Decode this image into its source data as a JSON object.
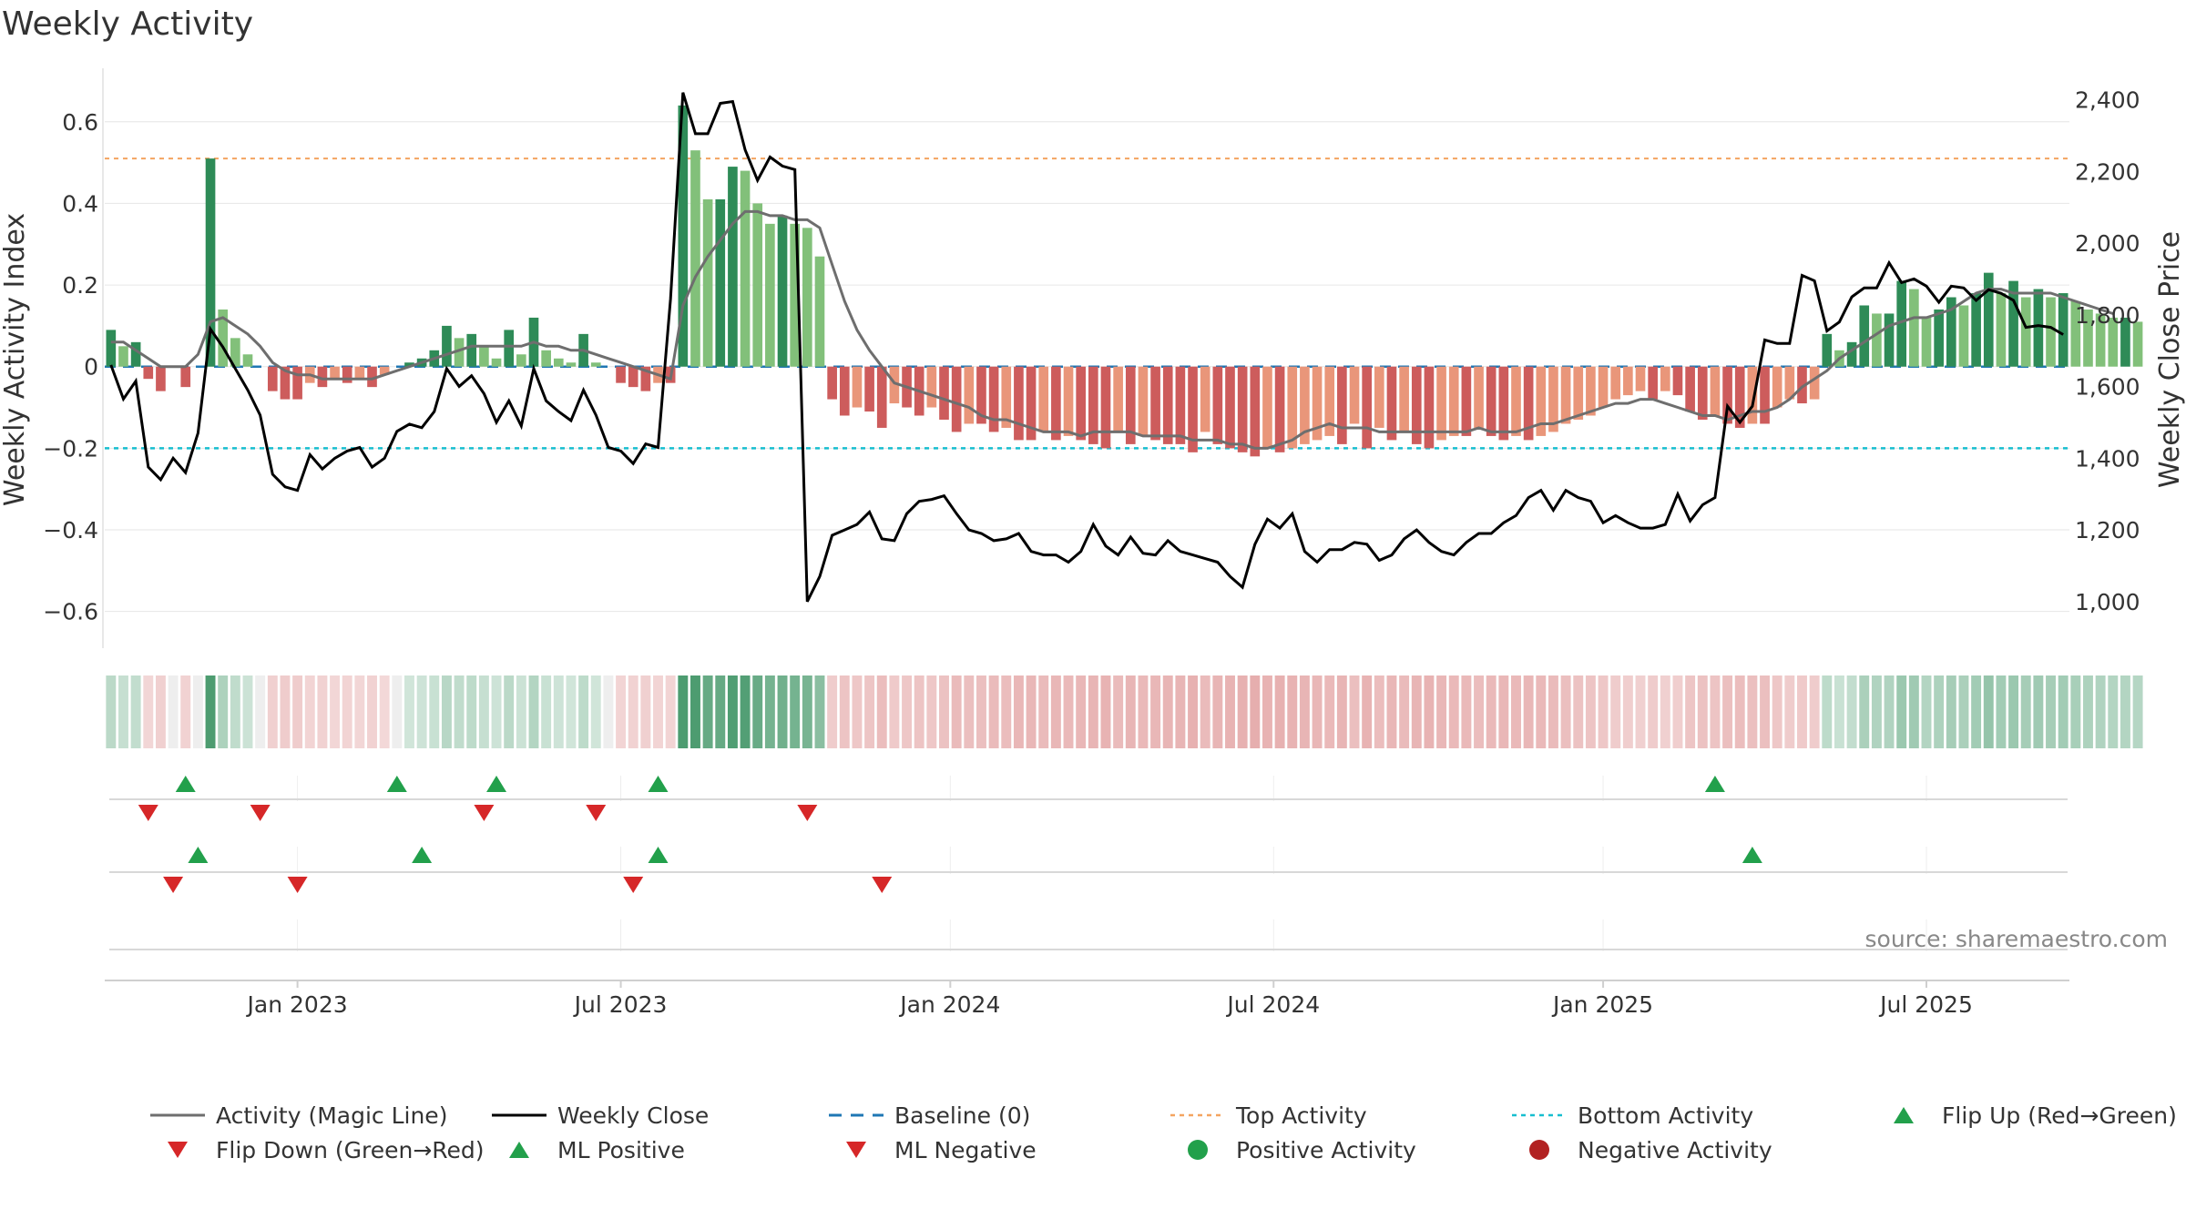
{
  "chart_data": {
    "type": "bar",
    "title": "Weekly Activity",
    "ylabel_left": "Weekly Activity Index",
    "ylabel_right": "Weekly Close Price",
    "ylim_left": [
      -0.69,
      0.72
    ],
    "ylim_right": [
      870,
      2475
    ],
    "yticks_left": [
      {
        "v": 0.6,
        "label": "0.6"
      },
      {
        "v": 0.4,
        "label": "0.4"
      },
      {
        "v": 0.2,
        "label": "0.2"
      },
      {
        "v": 0,
        "label": "0"
      },
      {
        "v": -0.2,
        "label": "−0.2"
      },
      {
        "v": -0.4,
        "label": "−0.4"
      },
      {
        "v": -0.6,
        "label": "−0.6"
      }
    ],
    "yticks_right": [
      {
        "v": 2400,
        "label": "2,400"
      },
      {
        "v": 2200,
        "label": "2,200"
      },
      {
        "v": 2000,
        "label": "2,000"
      },
      {
        "v": 1800,
        "label": "1,800"
      },
      {
        "v": 1600,
        "label": "1,600"
      },
      {
        "v": 1400,
        "label": "1,400"
      },
      {
        "v": 1200,
        "label": "1,200"
      },
      {
        "v": 1000,
        "label": "1,000"
      }
    ],
    "xticks": [
      {
        "week": 15,
        "label": "Jan 2023"
      },
      {
        "week": 41,
        "label": "Jul 2023"
      },
      {
        "week": 67.5,
        "label": "Jan 2024"
      },
      {
        "week": 93.5,
        "label": "Jul 2024"
      },
      {
        "week": 120,
        "label": "Jan 2025"
      },
      {
        "week": 146,
        "label": "Jul 2025"
      }
    ],
    "n_weeks": 158,
    "top_activity": 0.51,
    "bottom_activity": -0.2,
    "activity_bars": [
      0.09,
      0.05,
      0.06,
      -0.03,
      -0.06,
      0.0,
      -0.05,
      0.0,
      0.51,
      0.14,
      0.07,
      0.03,
      0.0,
      -0.06,
      -0.08,
      -0.08,
      -0.04,
      -0.05,
      -0.03,
      -0.04,
      -0.03,
      -0.05,
      -0.02,
      0.0,
      0.01,
      0.02,
      0.04,
      0.1,
      0.07,
      0.08,
      0.05,
      0.02,
      0.09,
      0.03,
      0.12,
      0.04,
      0.02,
      0.01,
      0.08,
      0.01,
      0.0,
      -0.04,
      -0.05,
      -0.06,
      -0.04,
      -0.04,
      0.64,
      0.53,
      0.41,
      0.41,
      0.49,
      0.48,
      0.4,
      0.35,
      0.37,
      0.35,
      0.34,
      0.27,
      -0.08,
      -0.12,
      -0.1,
      -0.11,
      -0.15,
      -0.09,
      -0.1,
      -0.12,
      -0.1,
      -0.13,
      -0.16,
      -0.14,
      -0.14,
      -0.16,
      -0.15,
      -0.18,
      -0.18,
      -0.16,
      -0.18,
      -0.17,
      -0.18,
      -0.19,
      -0.2,
      -0.16,
      -0.19,
      -0.17,
      -0.18,
      -0.19,
      -0.19,
      -0.21,
      -0.16,
      -0.19,
      -0.2,
      -0.21,
      -0.22,
      -0.2,
      -0.21,
      -0.2,
      -0.19,
      -0.18,
      -0.17,
      -0.19,
      -0.14,
      -0.2,
      -0.15,
      -0.18,
      -0.16,
      -0.19,
      -0.2,
      -0.18,
      -0.17,
      -0.17,
      -0.15,
      -0.17,
      -0.18,
      -0.17,
      -0.18,
      -0.17,
      -0.16,
      -0.14,
      -0.13,
      -0.12,
      -0.1,
      -0.08,
      -0.07,
      -0.06,
      -0.08,
      -0.06,
      -0.07,
      -0.11,
      -0.13,
      -0.12,
      -0.14,
      -0.15,
      -0.14,
      -0.14,
      -0.1,
      -0.08,
      -0.09,
      -0.08,
      0.08,
      0.04,
      0.06,
      0.15,
      0.13,
      0.13,
      0.21,
      0.19,
      0.12,
      0.14,
      0.17,
      0.15,
      0.18,
      0.23,
      0.18,
      0.21,
      0.17,
      0.19,
      0.17,
      0.18,
      0.16,
      0.14,
      0.13,
      0.12,
      0.12,
      0.11
    ],
    "magic_line": [
      0.06,
      0.06,
      0.04,
      0.02,
      0.0,
      0.0,
      0.0,
      0.03,
      0.11,
      0.12,
      0.1,
      0.08,
      0.05,
      0.01,
      -0.01,
      -0.02,
      -0.02,
      -0.03,
      -0.03,
      -0.03,
      -0.03,
      -0.03,
      -0.02,
      -0.01,
      0.0,
      0.01,
      0.02,
      0.03,
      0.04,
      0.05,
      0.05,
      0.05,
      0.05,
      0.05,
      0.06,
      0.05,
      0.05,
      0.04,
      0.04,
      0.03,
      0.02,
      0.01,
      0.0,
      -0.01,
      -0.02,
      -0.03,
      0.15,
      0.22,
      0.27,
      0.31,
      0.35,
      0.38,
      0.38,
      0.37,
      0.37,
      0.36,
      0.36,
      0.34,
      0.25,
      0.16,
      0.09,
      0.04,
      0.0,
      -0.04,
      -0.05,
      -0.06,
      -0.07,
      -0.08,
      -0.09,
      -0.1,
      -0.12,
      -0.13,
      -0.13,
      -0.14,
      -0.15,
      -0.16,
      -0.16,
      -0.16,
      -0.17,
      -0.16,
      -0.16,
      -0.16,
      -0.16,
      -0.17,
      -0.17,
      -0.17,
      -0.17,
      -0.18,
      -0.18,
      -0.18,
      -0.19,
      -0.19,
      -0.2,
      -0.2,
      -0.19,
      -0.18,
      -0.16,
      -0.15,
      -0.14,
      -0.15,
      -0.15,
      -0.15,
      -0.16,
      -0.16,
      -0.16,
      -0.16,
      -0.16,
      -0.16,
      -0.16,
      -0.16,
      -0.15,
      -0.16,
      -0.16,
      -0.16,
      -0.15,
      -0.14,
      -0.14,
      -0.13,
      -0.12,
      -0.11,
      -0.1,
      -0.09,
      -0.09,
      -0.08,
      -0.08,
      -0.09,
      -0.1,
      -0.11,
      -0.12,
      -0.12,
      -0.13,
      -0.12,
      -0.11,
      -0.11,
      -0.1,
      -0.08,
      -0.05,
      -0.03,
      -0.01,
      0.02,
      0.04,
      0.06,
      0.08,
      0.1,
      0.11,
      0.12,
      0.12,
      0.13,
      0.14,
      0.16,
      0.18,
      0.19,
      0.19,
      0.18,
      0.18,
      0.18,
      0.18,
      0.17,
      0.16,
      0.15,
      0.14,
      0.13
    ],
    "weekly_close": [
      1660,
      1565,
      1615,
      1375,
      1340,
      1400,
      1360,
      1470,
      1760,
      1710,
      1650,
      1590,
      1520,
      1355,
      1320,
      1310,
      1410,
      1370,
      1400,
      1420,
      1430,
      1375,
      1400,
      1475,
      1495,
      1485,
      1530,
      1650,
      1600,
      1630,
      1580,
      1500,
      1560,
      1490,
      1650,
      1560,
      1530,
      1505,
      1590,
      1520,
      1430,
      1420,
      1385,
      1440,
      1430,
      1845,
      2420,
      2305,
      2305,
      2390,
      2395,
      2260,
      2175,
      2240,
      2215,
      2205,
      1000,
      1070,
      1185,
      1200,
      1215,
      1250,
      1175,
      1170,
      1245,
      1280,
      1285,
      1295,
      1245,
      1200,
      1190,
      1170,
      1175,
      1190,
      1140,
      1130,
      1130,
      1110,
      1140,
      1215,
      1155,
      1130,
      1180,
      1135,
      1130,
      1170,
      1140,
      1130,
      1120,
      1110,
      1070,
      1040,
      1160,
      1230,
      1205,
      1245,
      1140,
      1110,
      1145,
      1145,
      1165,
      1160,
      1115,
      1130,
      1175,
      1200,
      1165,
      1140,
      1130,
      1165,
      1190,
      1190,
      1220,
      1240,
      1290,
      1310,
      1255,
      1310,
      1290,
      1280,
      1220,
      1240,
      1220,
      1205,
      1205,
      1215,
      1300,
      1225,
      1270,
      1290,
      1545,
      1500,
      1545,
      1730,
      1720,
      1720,
      1910,
      1895,
      1755,
      1780,
      1850,
      1875,
      1875,
      1945,
      1890,
      1900,
      1880,
      1835,
      1880,
      1875,
      1840,
      1870,
      1860,
      1840,
      1765,
      1770,
      1765,
      1745
    ],
    "series_colors": {
      "pos_dark": "#2e8b57",
      "pos_light": "#82c07a",
      "neg_dark": "#cd5c5c",
      "neg_light": "#e9967a",
      "magic_line": "#6e6e6e",
      "weekly_close": "#000000",
      "baseline": "#1f77b4",
      "top_activity": "#f4a460",
      "bottom_activity": "#17becf",
      "marker_up": "#22a04b",
      "marker_down": "#d62728",
      "neg_dot": "#b22222"
    },
    "flip_up_weeks": [
      6,
      23,
      31,
      44,
      129
    ],
    "flip_down_weeks": [
      3,
      12,
      30,
      39,
      56
    ],
    "ml_positive_weeks": [
      7,
      25,
      44,
      132
    ],
    "ml_negative_weeks": [
      5,
      15,
      42,
      62
    ],
    "legend": [
      {
        "key": "magic_line",
        "label": "Activity (Magic Line)",
        "symbol": "line-gray"
      },
      {
        "key": "weekly_close",
        "label": "Weekly Close",
        "symbol": "line-black"
      },
      {
        "key": "baseline",
        "label": "Baseline (0)",
        "symbol": "dash-blue"
      },
      {
        "key": "top_activity",
        "label": "Top Activity",
        "symbol": "dot-orange"
      },
      {
        "key": "bottom_activity",
        "label": "Bottom Activity",
        "symbol": "dot-cyan"
      },
      {
        "key": "flip_up",
        "label": "Flip Up (Red→Green)",
        "symbol": "tri-up"
      },
      {
        "key": "flip_down",
        "label": "Flip Down (Green→Red)",
        "symbol": "tri-down"
      },
      {
        "key": "ml_positive",
        "label": "ML Positive",
        "symbol": "tri-up"
      },
      {
        "key": "ml_negative",
        "label": "ML Negative",
        "symbol": "tri-down"
      },
      {
        "key": "positive_activity",
        "label": "Positive Activity",
        "symbol": "circle-green"
      },
      {
        "key": "negative_activity",
        "label": "Negative Activity",
        "symbol": "circle-red"
      }
    ],
    "source_text": "source: sharemaestro.com"
  }
}
